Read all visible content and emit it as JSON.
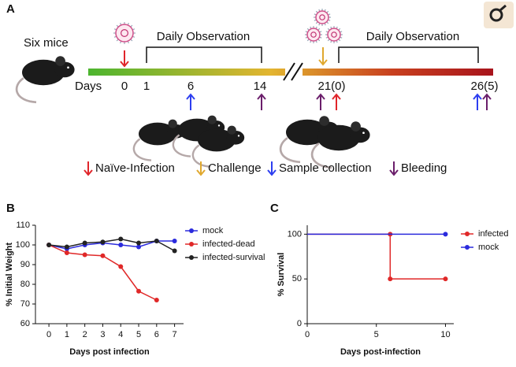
{
  "panel_a": {
    "label": "A",
    "subject": "Six mice",
    "days_label": "Days",
    "days": [
      "0",
      "1",
      "6",
      "14",
      "21(0)",
      "26(5)"
    ],
    "observation": [
      "Daily Observation",
      "Daily Observation"
    ],
    "legend": [
      "Naïve-Infection",
      "Challenge",
      "Sample collection",
      "Bleeding"
    ]
  },
  "chart_data": [
    {
      "type": "line",
      "panel": "B",
      "xlabel": "Days post infection",
      "ylabel": "% Initial Weight",
      "x": [
        0,
        1,
        2,
        3,
        4,
        5,
        6,
        7
      ],
      "xlim": [
        -0.75,
        7.5
      ],
      "xticks": [
        0,
        1,
        2,
        3,
        4,
        5,
        6,
        7
      ],
      "ylim": [
        60,
        110
      ],
      "yticks": [
        60,
        70,
        80,
        90,
        100,
        110
      ],
      "legend": "upper right",
      "series": [
        {
          "name": "mock",
          "color": "#2b2bdd",
          "values": [
            100,
            98,
            100,
            101,
            100,
            99,
            102,
            102
          ]
        },
        {
          "name": "infected-dead",
          "color": "#e02828",
          "values": [
            100,
            96,
            95,
            94.5,
            89,
            76.5,
            72,
            null
          ]
        },
        {
          "name": "infected-survival",
          "color": "#222222",
          "values": [
            100,
            99,
            101,
            101.5,
            103,
            101,
            102,
            97
          ]
        }
      ]
    },
    {
      "type": "line",
      "panel": "C",
      "xlabel": "Days post-infection",
      "ylabel": "% Survival",
      "xlim": [
        0,
        10.6
      ],
      "xticks": [
        0,
        5,
        10
      ],
      "ylim": [
        0,
        110
      ],
      "yticks": [
        0,
        50,
        100
      ],
      "legend": "outside right",
      "series": [
        {
          "name": "infected",
          "color": "#e02828",
          "x": [
            0,
            6,
            6,
            10
          ],
          "values": [
            100,
            100,
            50,
            50
          ]
        },
        {
          "name": "mock",
          "color": "#2b2bdd",
          "x": [
            0,
            10
          ],
          "values": [
            100,
            100
          ]
        }
      ]
    }
  ]
}
